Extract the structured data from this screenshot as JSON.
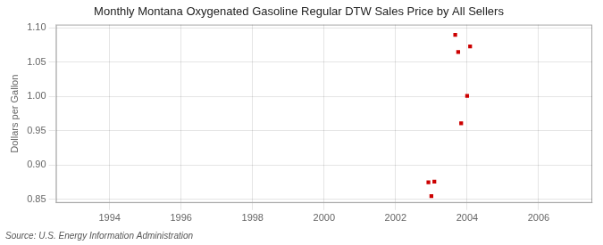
{
  "chart_data": {
    "type": "scatter",
    "title": "Monthly Montana Oxygenated Gasoline Regular DTW Sales Price by All Sellers",
    "ylabel": "Dollars per Gallon",
    "annotations": [
      "Source: U.S. Energy Information Administration"
    ],
    "x": [
      2002.917,
      2003.0,
      2003.083,
      2003.667,
      2003.75,
      2003.833,
      2004.0,
      2004.083
    ],
    "values": [
      0.875,
      0.855,
      0.876,
      1.09,
      1.065,
      0.961,
      1.001,
      1.073
    ],
    "color": "#cc0000",
    "marker": "square",
    "xlim": [
      1992.5,
      2007.5
    ],
    "ylim": [
      0.845,
      1.105
    ],
    "xticks": [
      1994,
      1996,
      1998,
      2000,
      2002,
      2004,
      2006
    ],
    "yticks": [
      0.85,
      {
        "value": 0.9,
        "label": "0.90"
      },
      0.95,
      {
        "value": 1.0,
        "label": "1.00"
      },
      1.05,
      {
        "value": 1.1,
        "label": "1.10"
      }
    ],
    "grid": true
  }
}
